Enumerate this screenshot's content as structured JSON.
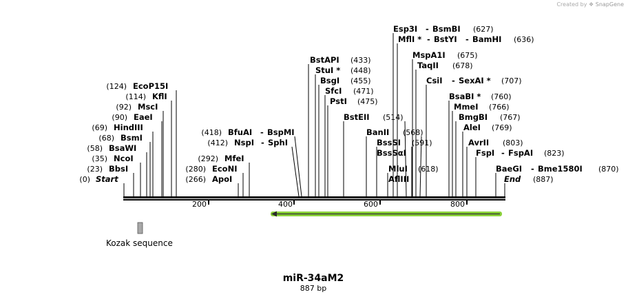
{
  "credit": {
    "prefix": "Created by",
    "brand": "SnapGene"
  },
  "construct": {
    "name": "miR-34aM2",
    "length": "887 bp"
  },
  "ends": {
    "start": {
      "label": "Start",
      "pos": "(0)"
    },
    "end": {
      "label": "End",
      "pos": "(887)"
    }
  },
  "ticks": [
    "200",
    "400",
    "600",
    "800"
  ],
  "left_sites": [
    {
      "name": "EcoP15I",
      "pos": "(124)"
    },
    {
      "name": "KflI",
      "pos": "(114)"
    },
    {
      "name": "MscI",
      "pos": "(92)"
    },
    {
      "name": "EaeI",
      "pos": "(90)"
    },
    {
      "name": "HindIII",
      "pos": "(69)"
    },
    {
      "name": "BsmI",
      "pos": "(68)"
    },
    {
      "name": "BsaWI",
      "pos": "(58)"
    },
    {
      "name": "NcoI",
      "pos": "(35)"
    },
    {
      "name": "BbsI",
      "pos": "(23)"
    }
  ],
  "mid_sites": [
    {
      "name": "BfuAI",
      "alt": "BspMI",
      "pos": "(418)"
    },
    {
      "name": "NspI",
      "alt": "SphI",
      "pos": "(412)"
    },
    {
      "name": "MfeI",
      "pos": "(292)"
    },
    {
      "name": "EcoNI",
      "pos": "(280)"
    },
    {
      "name": "ApoI",
      "pos": "(266)"
    }
  ],
  "upper_sites": [
    {
      "name": "BstAPI",
      "pos": "(433)"
    },
    {
      "name": "StuI *",
      "pos": "(448)"
    },
    {
      "name": "BsgI",
      "pos": "(455)"
    },
    {
      "name": "SfcI",
      "pos": "(471)"
    },
    {
      "name": "PstI",
      "pos": "(475)"
    },
    {
      "name": "BstEII",
      "pos": "(514)"
    },
    {
      "name": "BanII",
      "pos": "(568)"
    },
    {
      "name": "BssSI",
      "pos": "(591)"
    },
    {
      "name": "BssSαI"
    },
    {
      "name": "MluI",
      "pos": "(618)"
    },
    {
      "name": "AflIII"
    }
  ],
  "right_sites": [
    {
      "name": "Esp3I",
      "alt": "BsmBI",
      "pos": "(627)"
    },
    {
      "name": "MflI *",
      "alt": "BstYI",
      "alt2": "BamHI",
      "pos": "(636)"
    },
    {
      "name": "MspA1I",
      "pos": "(675)"
    },
    {
      "name": "TaqII",
      "pos": "(678)"
    },
    {
      "name": "CsiI",
      "alt": "SexAI *",
      "pos": "(707)"
    },
    {
      "name": "BsaBI *",
      "pos": "(760)"
    },
    {
      "name": "MmeI",
      "pos": "(766)"
    },
    {
      "name": "BmgBI",
      "pos": "(767)"
    },
    {
      "name": "AleI",
      "pos": "(769)"
    },
    {
      "name": "AvrII",
      "pos": "(803)"
    },
    {
      "name": "FspI",
      "alt": "FspAI",
      "pos": "(823)"
    },
    {
      "name": "BaeGI",
      "alt": "Bme1580I",
      "pos": "(870)"
    }
  ],
  "features": [
    {
      "name": "Kozak sequence"
    }
  ],
  "colors": {
    "arrow": "#8bd13a",
    "arrow_line": "#2a2a2a",
    "feature_box": "#a8a8a8",
    "backbone": "#000000"
  }
}
